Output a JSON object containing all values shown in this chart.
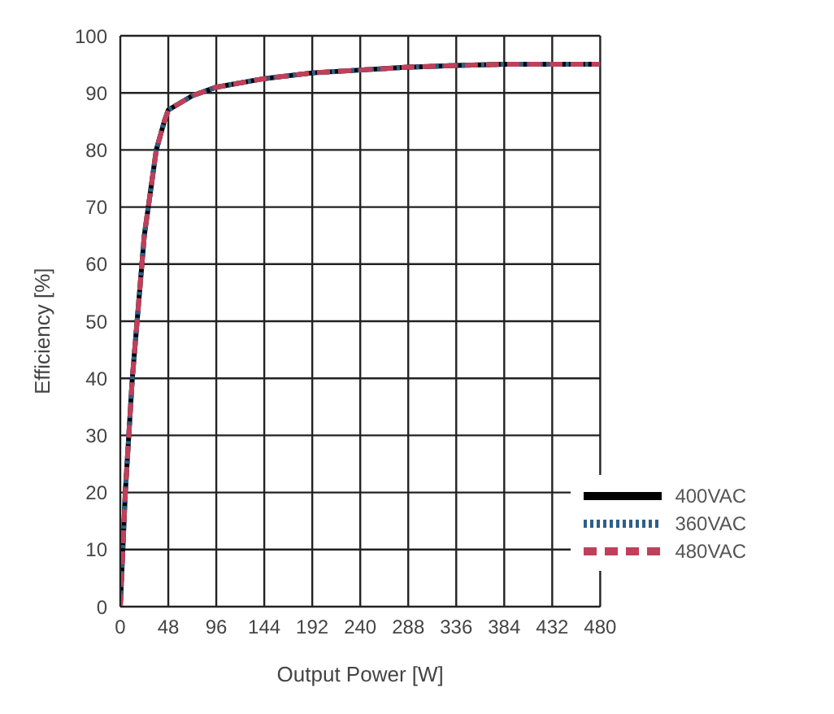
{
  "chart_data": {
    "type": "line",
    "xlabel": "Output Power [W]",
    "ylabel": "Efficiency [%]",
    "xlim": [
      0,
      480
    ],
    "xticks": [
      0,
      48,
      96,
      144,
      192,
      240,
      288,
      336,
      384,
      432,
      480
    ],
    "ylim": [
      0,
      100
    ],
    "yticks": [
      0,
      10,
      20,
      30,
      40,
      50,
      60,
      70,
      80,
      90,
      100
    ],
    "x": [
      0,
      5,
      12,
      24,
      36,
      44,
      48,
      72,
      96,
      144,
      192,
      240,
      288,
      336,
      384,
      432,
      480
    ],
    "series": [
      {
        "name": "400VAC",
        "color": "#000000",
        "line_style": "solid",
        "values": [
          0,
          20,
          40,
          65,
          80,
          85,
          87,
          89.5,
          91,
          92.5,
          93.5,
          94,
          94.5,
          94.8,
          95,
          95,
          95
        ]
      },
      {
        "name": "360VAC",
        "color": "#2f5f8a",
        "line_style": "dotted",
        "values": [
          0,
          20,
          40,
          65,
          80,
          85,
          87,
          89.5,
          91,
          92.5,
          93.5,
          94,
          94.5,
          94.8,
          95,
          95,
          95
        ]
      },
      {
        "name": "480VAC",
        "color": "#c0405a",
        "line_style": "dashed",
        "values": [
          0,
          20,
          40,
          65,
          80,
          85,
          87,
          89.5,
          91,
          92.5,
          93.5,
          94,
          94.5,
          94.8,
          95,
          95,
          95
        ]
      }
    ],
    "grid": true,
    "legend": "bottom right",
    "marker": "none"
  }
}
